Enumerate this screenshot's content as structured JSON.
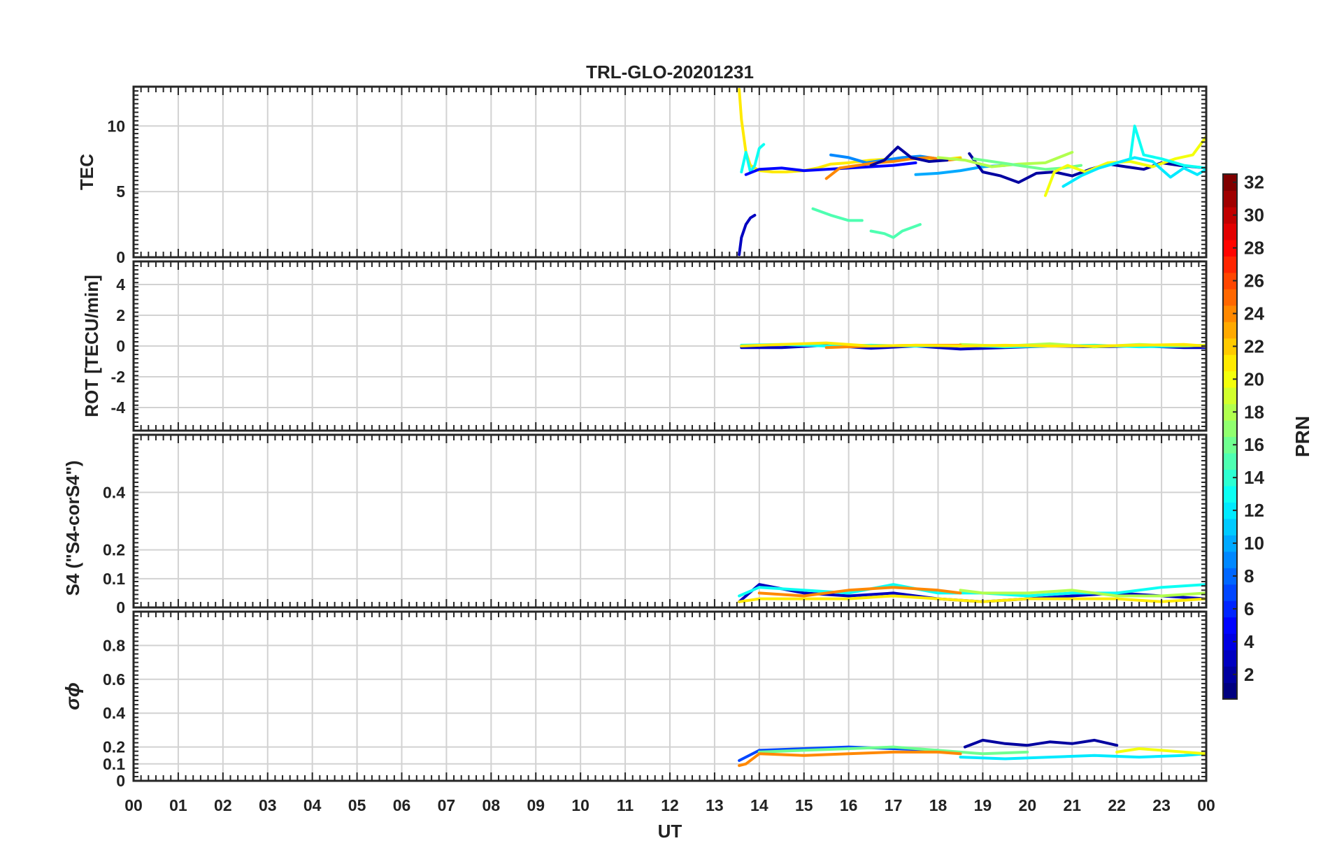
{
  "chart_data": {
    "type": "line",
    "title": "TRL-GLO-20201231",
    "xlabel": "UT",
    "x_ticks": [
      "00",
      "01",
      "02",
      "03",
      "04",
      "05",
      "06",
      "07",
      "08",
      "09",
      "10",
      "11",
      "12",
      "13",
      "14",
      "15",
      "16",
      "17",
      "18",
      "19",
      "20",
      "21",
      "22",
      "23",
      "00"
    ],
    "xlim": [
      0,
      24
    ],
    "grid": true,
    "colorbar": {
      "label": "PRN",
      "range": [
        1,
        32
      ],
      "ticks": [
        "2",
        "4",
        "6",
        "8",
        "10",
        "12",
        "14",
        "16",
        "18",
        "20",
        "22",
        "24",
        "26",
        "28",
        "30",
        "32"
      ],
      "colormap": "jet"
    },
    "panels": [
      {
        "ylabel": "TEC",
        "ylim": [
          0,
          13
        ],
        "yticks": [
          "0",
          "5",
          "10"
        ],
        "series": [
          {
            "prn": 21,
            "x": [
              13.55,
              13.6,
              13.7,
              13.8,
              14.0,
              14.3,
              14.6,
              15.0,
              15.3,
              15.6,
              16.0,
              16.5,
              17.0,
              17.5,
              18.0,
              18.5
            ],
            "y": [
              12.8,
              10.5,
              8.0,
              7.0,
              6.6,
              6.5,
              6.5,
              6.6,
              6.8,
              7.1,
              7.2,
              7.4,
              7.5,
              7.5,
              7.4,
              7.6
            ]
          },
          {
            "prn": 3,
            "x": [
              13.55,
              13.6,
              13.7,
              13.8,
              13.9
            ],
            "y": [
              0.2,
              1.5,
              2.5,
              3.0,
              3.2
            ]
          },
          {
            "prn": 13,
            "x": [
              13.6,
              13.7,
              13.8,
              13.9,
              14.0,
              14.1
            ],
            "y": [
              6.5,
              8.0,
              6.5,
              7.0,
              8.3,
              8.6
            ]
          },
          {
            "prn": 5,
            "x": [
              13.7,
              14.0,
              14.5,
              15.0,
              15.5,
              16.0,
              16.5,
              17.0,
              17.5
            ],
            "y": [
              6.3,
              6.7,
              6.8,
              6.6,
              6.7,
              6.8,
              6.9,
              7.0,
              7.2
            ]
          },
          {
            "prn": 9,
            "x": [
              15.6,
              16.0,
              16.4,
              16.8,
              17.2,
              17.6,
              18.0
            ],
            "y": [
              7.8,
              7.6,
              7.2,
              7.4,
              7.6,
              7.7,
              7.5
            ]
          },
          {
            "prn": 24,
            "x": [
              15.5,
              15.8,
              16.2,
              16.6,
              17.0,
              17.4,
              17.8,
              18.2,
              18.5
            ],
            "y": [
              6.0,
              6.8,
              7.0,
              7.2,
              7.3,
              7.5,
              7.6,
              7.4,
              7.5
            ]
          },
          {
            "prn": 2,
            "x": [
              16.5,
              16.8,
              17.1,
              17.4,
              17.8,
              18.2
            ],
            "y": [
              7.0,
              7.4,
              8.4,
              7.6,
              7.3,
              7.4
            ]
          },
          {
            "prn": 10,
            "x": [
              17.5,
              18.0,
              18.5,
              19.0,
              19.5
            ],
            "y": [
              6.3,
              6.4,
              6.6,
              6.9,
              7.0
            ]
          },
          {
            "prn": 2,
            "x": [
              18.7,
              19.0,
              19.4,
              19.8,
              20.2,
              20.6,
              21.0,
              21.4,
              21.8,
              22.2,
              22.6,
              23.0,
              23.4,
              24.0
            ],
            "y": [
              7.9,
              6.5,
              6.2,
              5.7,
              6.4,
              6.5,
              6.2,
              6.7,
              7.1,
              6.9,
              6.7,
              7.2,
              7.0,
              6.8
            ]
          },
          {
            "prn": 18,
            "x": [
              18.0,
              18.6,
              19.2,
              19.8,
              20.4,
              21.0
            ],
            "y": [
              7.6,
              7.4,
              6.9,
              7.1,
              7.2,
              8.0
            ]
          },
          {
            "prn": 16,
            "x": [
              18.8,
              19.4,
              20.0,
              20.4,
              20.8,
              21.2
            ],
            "y": [
              7.5,
              7.2,
              6.9,
              6.7,
              6.8,
              7.0
            ]
          },
          {
            "prn": 20,
            "x": [
              20.4,
              20.6,
              20.9,
              21.3,
              21.8,
              22.3,
              22.8,
              23.3,
              23.7,
              24.0
            ],
            "y": [
              4.7,
              6.5,
              7.0,
              6.5,
              7.2,
              7.3,
              6.9,
              7.5,
              7.8,
              9.2
            ]
          },
          {
            "prn": 12,
            "x": [
              20.8,
              21.2,
              21.6,
              22.0,
              22.4,
              22.8,
              23.2,
              23.5,
              23.8,
              24.0
            ],
            "y": [
              5.4,
              6.2,
              6.8,
              7.2,
              7.6,
              7.3,
              6.1,
              6.8,
              6.3,
              6.7
            ]
          },
          {
            "prn": 13,
            "x": [
              22.3,
              22.4,
              22.6,
              23.0,
              23.5,
              24.0
            ],
            "y": [
              7.5,
              10.0,
              7.8,
              7.5,
              7.0,
              6.8
            ]
          },
          {
            "prn": 15,
            "x": [
              15.2,
              15.6,
              16.0,
              16.3
            ],
            "y": [
              3.7,
              3.2,
              2.8,
              2.8
            ]
          },
          {
            "prn": 15,
            "x": [
              16.5,
              16.8,
              17.0,
              17.2,
              17.6
            ],
            "y": [
              2.0,
              1.8,
              1.5,
              2.0,
              2.5
            ]
          }
        ]
      },
      {
        "ylabel": "ROT [TECU/min]",
        "ylim": [
          -5.5,
          5.5
        ],
        "yticks": [
          "-4",
          "-2",
          "0",
          "2",
          "4"
        ],
        "series": [
          {
            "prn": 3,
            "x": [
              13.6,
              14.5,
              15.5,
              16.5,
              17.5,
              18.5,
              19.5,
              20.5,
              21.5,
              22.5,
              23.5,
              24.0
            ],
            "y": [
              -0.1,
              -0.1,
              0.05,
              -0.15,
              0.0,
              -0.2,
              -0.1,
              0.0,
              -0.05,
              0.0,
              -0.1,
              -0.1
            ]
          },
          {
            "prn": 13,
            "x": [
              13.6,
              14.5,
              15.5,
              16.5,
              17.5,
              18.5,
              19.5,
              20.5,
              21.5,
              22.5,
              23.5,
              24.0
            ],
            "y": [
              0.05,
              0.1,
              0.0,
              0.05,
              0.0,
              0.05,
              -0.05,
              0.0,
              0.05,
              -0.05,
              0.0,
              0.05
            ]
          },
          {
            "prn": 18,
            "x": [
              18.5,
              19.5,
              20.5,
              21.5,
              22.5,
              23.5,
              24.0
            ],
            "y": [
              0.1,
              0.0,
              0.15,
              -0.05,
              0.1,
              0.0,
              0.05
            ]
          },
          {
            "prn": 24,
            "x": [
              15.5,
              16.5,
              17.5,
              18.5
            ],
            "y": [
              -0.1,
              0.0,
              0.05,
              0.05
            ]
          },
          {
            "prn": 21,
            "x": [
              13.6,
              14.5,
              15.5,
              16.5,
              17.5,
              18.5,
              19.5,
              20.5,
              21.5,
              22.5,
              23.5,
              24.0
            ],
            "y": [
              0.0,
              0.1,
              0.2,
              0.0,
              0.05,
              0.0,
              0.05,
              0.0,
              0.0,
              0.05,
              0.1,
              0.0
            ]
          }
        ]
      },
      {
        "ylabel": "S4 (\"S4-corS4\")",
        "ylim": [
          0,
          0.6
        ],
        "yticks": [
          "0",
          "0.1",
          "0.2",
          "0.4"
        ],
        "series": [
          {
            "prn": 3,
            "x": [
              13.55,
              14.0,
              15.0,
              16.0,
              17.0,
              18.0,
              19.0,
              20.0,
              21.0,
              22.0,
              23.0,
              24.0
            ],
            "y": [
              0.02,
              0.08,
              0.05,
              0.04,
              0.05,
              0.03,
              0.02,
              0.03,
              0.04,
              0.05,
              0.04,
              0.03
            ]
          },
          {
            "prn": 13,
            "x": [
              13.55,
              14.0,
              15.0,
              16.0,
              17.0,
              18.0,
              19.0,
              20.0,
              21.0,
              22.0,
              23.0,
              24.0
            ],
            "y": [
              0.04,
              0.07,
              0.06,
              0.05,
              0.08,
              0.05,
              0.05,
              0.04,
              0.05,
              0.05,
              0.07,
              0.08
            ]
          },
          {
            "prn": 18,
            "x": [
              18.5,
              19.0,
              20.0,
              21.0,
              22.0,
              23.0,
              24.0
            ],
            "y": [
              0.06,
              0.05,
              0.05,
              0.06,
              0.04,
              0.04,
              0.05
            ]
          },
          {
            "prn": 24,
            "x": [
              14.0,
              15.0,
              16.0,
              17.0,
              18.0,
              18.5
            ],
            "y": [
              0.05,
              0.04,
              0.06,
              0.07,
              0.06,
              0.05
            ]
          },
          {
            "prn": 21,
            "x": [
              13.55,
              14.0,
              15.0,
              16.0,
              17.0,
              18.0,
              19.0,
              20.0,
              21.0,
              22.0,
              23.0,
              24.0
            ],
            "y": [
              0.02,
              0.03,
              0.03,
              0.03,
              0.04,
              0.03,
              0.02,
              0.03,
              0.03,
              0.03,
              0.02,
              0.03
            ]
          }
        ]
      },
      {
        "ylabel": "σϕ",
        "ylim": [
          0,
          1.0
        ],
        "yticks": [
          "0",
          "0.1",
          "0.2",
          "0.4",
          "0.6",
          "0.8"
        ],
        "series": [
          {
            "prn": 2,
            "x": [
              18.6,
              19.0,
              19.5,
              20.0,
              20.5,
              21.0,
              21.5,
              22.0
            ],
            "y": [
              0.2,
              0.24,
              0.22,
              0.21,
              0.23,
              0.22,
              0.24,
              0.21
            ]
          },
          {
            "prn": 7,
            "x": [
              13.55,
              14.0,
              15.0,
              16.0,
              17.0,
              18.0
            ],
            "y": [
              0.12,
              0.18,
              0.19,
              0.2,
              0.19,
              0.18
            ]
          },
          {
            "prn": 16,
            "x": [
              14.0,
              15.0,
              16.0,
              17.0,
              18.0,
              19.0,
              20.0
            ],
            "y": [
              0.17,
              0.18,
              0.19,
              0.2,
              0.18,
              0.16,
              0.17
            ]
          },
          {
            "prn": 24,
            "x": [
              13.55,
              13.7,
              14.0,
              15.0,
              16.0,
              17.0,
              18.0,
              18.5
            ],
            "y": [
              0.09,
              0.1,
              0.16,
              0.15,
              0.16,
              0.17,
              0.17,
              0.16
            ]
          },
          {
            "prn": 12,
            "x": [
              18.5,
              19.5,
              20.5,
              21.5,
              22.5,
              23.5,
              24.0
            ],
            "y": [
              0.14,
              0.13,
              0.14,
              0.15,
              0.14,
              0.15,
              0.16
            ]
          },
          {
            "prn": 20,
            "x": [
              22.0,
              22.5,
              23.0,
              23.5,
              24.0
            ],
            "y": [
              0.17,
              0.19,
              0.18,
              0.17,
              0.16
            ]
          }
        ]
      }
    ]
  }
}
